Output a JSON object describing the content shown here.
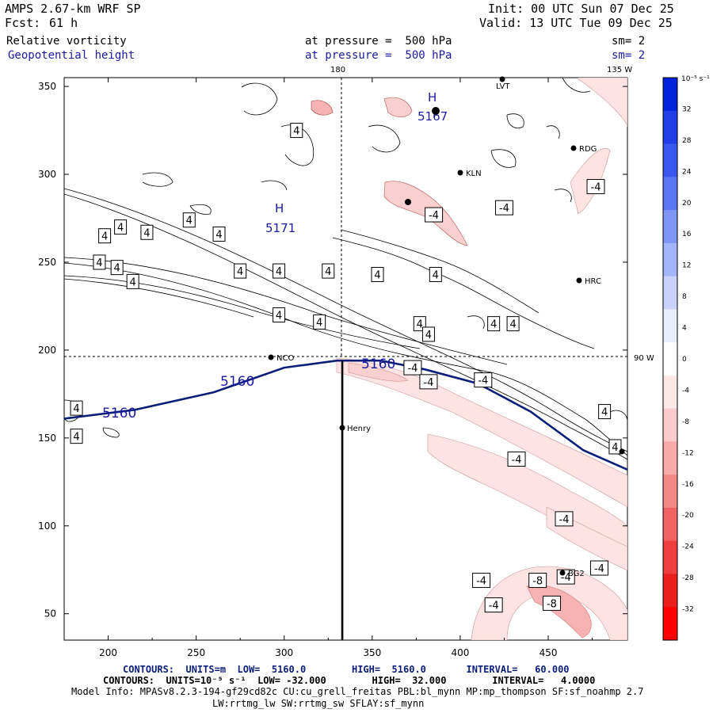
{
  "header": {
    "model": "AMPS 2.67-km WRF SP",
    "fcst_label": "Fcst:",
    "fcst_value": "61 h",
    "init": "Init: 00 UTC Sun 07 Dec 25",
    "valid": "Valid: 13 UTC Tue 09 Dec 25",
    "field1": "Relative vorticity",
    "field1_level": "at pressure =  500 hPa",
    "field1_sm": "sm= 2",
    "field2": "Geopotential height",
    "field2_level": "at pressure =  500 hPa",
    "field2_sm": "sm= 2"
  },
  "map_labels": {
    "lon_180": "180",
    "lon_135w": "135 W",
    "lon_90w": "90 W",
    "high_marker": "H",
    "high1_value": "5167",
    "high2_value": "5171",
    "height_label": "5160",
    "cross_label": "5160"
  },
  "stations": [
    "LVT",
    "RDG",
    "KLN",
    "HRC",
    "NCO",
    "Henry",
    "BG2"
  ],
  "footer": {
    "contours1": "CONTOURS:  UNITS=m  LOW=  5160.0        HIGH=  5160.0       INTERVAL=   60.000",
    "contours2": "CONTOURS:  UNITS=10⁻⁵ s⁻¹  LOW= -32.000        HIGH=  32.000        INTERVAL=   4.0000",
    "model_info": "Model Info: MPASv8.2.3-194-gf29cd82c CU:cu_grell_freitas PBL:bl_mynn MP:mp_thompson SF:sf_noahmp 2.7",
    "model_info2": "LW:rrtmg_lw SW:rrtmg_sw SFLAY:sf_mynn"
  },
  "colorbar": {
    "unit": "10⁻⁵ s⁻¹",
    "levels": [
      "32",
      "28",
      "24",
      "20",
      "16",
      "12",
      "8",
      "4",
      "0",
      "-4",
      "-8",
      "-12",
      "-16",
      "-20",
      "-24",
      "-28",
      "-32"
    ],
    "colors": [
      "#0022dd",
      "#1f3ee6",
      "#3a57ee",
      "#5a75f2",
      "#7e95f5",
      "#a4b4f8",
      "#c8d2fb",
      "#e8ecfd",
      "#ffffff",
      "#fde8e8",
      "#fbcaca",
      "#f8a9a9",
      "#f58787",
      "#f26262",
      "#ee3e3e",
      "#ec1d1d",
      "#ff0000"
    ]
  },
  "chart_data": {
    "type": "contour-map",
    "title": "Relative vorticity / Geopotential height at 500 hPa",
    "x_ticks": [
      200,
      250,
      300,
      350,
      400,
      450
    ],
    "y_ticks": [
      50,
      100,
      150,
      200,
      250,
      300,
      350
    ],
    "xlim": [
      175,
      495
    ],
    "ylim": [
      35,
      355
    ],
    "height_contour": {
      "value": 5160,
      "points": [
        [
          175,
          161
        ],
        [
          215,
          166
        ],
        [
          260,
          176
        ],
        [
          300,
          190
        ],
        [
          330,
          194
        ],
        [
          355,
          194
        ],
        [
          380,
          189
        ],
        [
          410,
          181
        ],
        [
          440,
          165
        ],
        [
          470,
          143
        ],
        [
          495,
          132
        ]
      ]
    },
    "cross_section_line": [
      [
        333,
        35
      ],
      [
        333,
        194
      ]
    ],
    "vorticity_labels": [
      {
        "x": 207,
        "y": 270,
        "v": "4"
      },
      {
        "x": 198,
        "y": 265,
        "v": "4"
      },
      {
        "x": 222,
        "y": 267,
        "v": "4"
      },
      {
        "x": 246,
        "y": 274,
        "v": "4"
      },
      {
        "x": 263,
        "y": 266,
        "v": "4"
      },
      {
        "x": 195,
        "y": 250,
        "v": "4"
      },
      {
        "x": 205,
        "y": 247,
        "v": "4"
      },
      {
        "x": 214,
        "y": 239,
        "v": "4"
      },
      {
        "x": 275,
        "y": 245,
        "v": "4"
      },
      {
        "x": 297,
        "y": 245,
        "v": "4"
      },
      {
        "x": 325,
        "y": 245,
        "v": "4"
      },
      {
        "x": 353,
        "y": 243,
        "v": "4"
      },
      {
        "x": 386,
        "y": 243,
        "v": "4"
      },
      {
        "x": 297,
        "y": 220,
        "v": "4"
      },
      {
        "x": 320,
        "y": 216,
        "v": "4"
      },
      {
        "x": 377,
        "y": 215,
        "v": "4"
      },
      {
        "x": 382,
        "y": 209,
        "v": "4"
      },
      {
        "x": 419,
        "y": 215,
        "v": "4"
      },
      {
        "x": 430,
        "y": 215,
        "v": "4"
      },
      {
        "x": 307,
        "y": 325,
        "v": "4"
      },
      {
        "x": 182,
        "y": 167,
        "v": "4"
      },
      {
        "x": 182,
        "y": 151,
        "v": "4"
      },
      {
        "x": 482,
        "y": 165,
        "v": "4"
      },
      {
        "x": 488,
        "y": 145,
        "v": "4"
      },
      {
        "x": 373,
        "y": 190,
        "v": "-4"
      },
      {
        "x": 382,
        "y": 182,
        "v": "-4"
      },
      {
        "x": 413,
        "y": 183,
        "v": "-4"
      },
      {
        "x": 385,
        "y": 277,
        "v": "-4"
      },
      {
        "x": 425,
        "y": 281,
        "v": "-4"
      },
      {
        "x": 477,
        "y": 293,
        "v": "-4"
      },
      {
        "x": 432,
        "y": 138,
        "v": "-4"
      },
      {
        "x": 459,
        "y": 104,
        "v": "-4"
      },
      {
        "x": 479,
        "y": 76,
        "v": "-4"
      },
      {
        "x": 460,
        "y": 71,
        "v": "-4"
      },
      {
        "x": 412,
        "y": 69,
        "v": "-4"
      },
      {
        "x": 419,
        "y": 55,
        "v": "-4"
      },
      {
        "x": 444,
        "y": 69,
        "v": "-8"
      },
      {
        "x": 452,
        "y": 56,
        "v": "-8"
      }
    ]
  }
}
